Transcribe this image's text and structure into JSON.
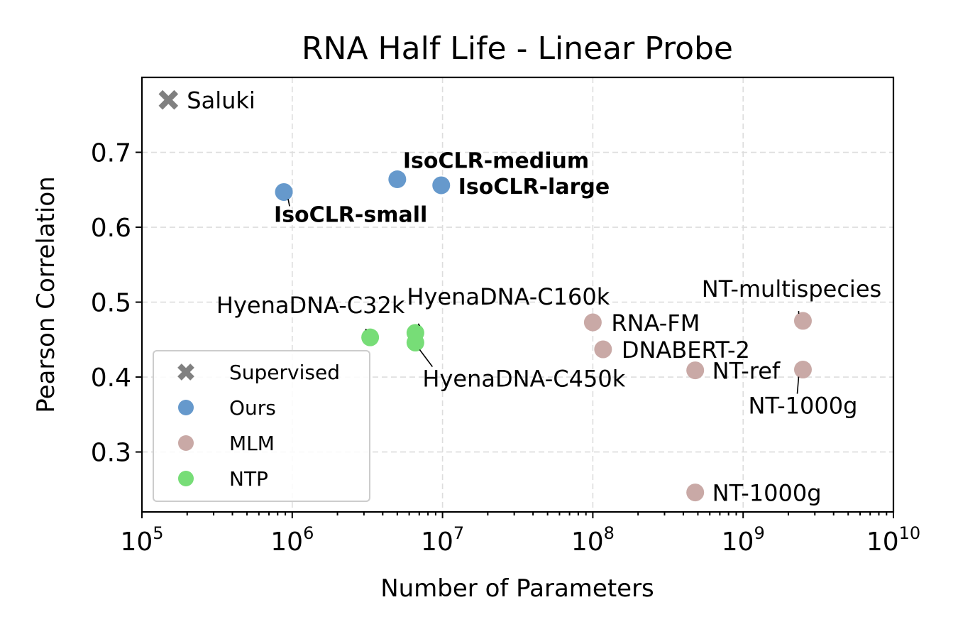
{
  "chart_data": {
    "type": "scatter",
    "title": "RNA Half Life - Linear Probe",
    "xlabel": "Number of Parameters",
    "ylabel": "Pearson Correlation",
    "x_scale": "log",
    "xlim": [
      100000,
      10000000000
    ],
    "ylim": [
      0.22,
      0.8
    ],
    "x_ticks": [
      {
        "base": "10",
        "exp": "5",
        "value": 100000
      },
      {
        "base": "10",
        "exp": "6",
        "value": 1000000
      },
      {
        "base": "10",
        "exp": "7",
        "value": 10000000
      },
      {
        "base": "10",
        "exp": "8",
        "value": 100000000
      },
      {
        "base": "10",
        "exp": "9",
        "value": 1000000000
      },
      {
        "base": "10",
        "exp": "10",
        "value": 10000000000
      }
    ],
    "y_ticks": [
      "0.3",
      "0.4",
      "0.5",
      "0.6",
      "0.7"
    ],
    "grid": true,
    "legend_position": "lower-left",
    "series": [
      {
        "name": "Supervised",
        "marker": "x",
        "color": "#808080",
        "points": [
          {
            "x": 150000,
            "y": 0.77,
            "label": "Saluki"
          }
        ]
      },
      {
        "name": "Ours",
        "marker": "circle",
        "color": "#6699cc",
        "points": [
          {
            "x": 880000,
            "y": 0.647,
            "label": "IsoCLR-small"
          },
          {
            "x": 5000000,
            "y": 0.664,
            "label": "IsoCLR-medium"
          },
          {
            "x": 9800000,
            "y": 0.656,
            "label": "IsoCLR-large"
          }
        ]
      },
      {
        "name": "MLM",
        "marker": "circle",
        "color": "#c9a9a6",
        "points": [
          {
            "x": 100000000,
            "y": 0.473,
            "label": "RNA-FM"
          },
          {
            "x": 117000000,
            "y": 0.437,
            "label": "DNABERT-2"
          },
          {
            "x": 480000000,
            "y": 0.409,
            "label": "NT-ref"
          },
          {
            "x": 480000000,
            "y": 0.246,
            "label": "NT-1000g"
          },
          {
            "x": 2500000000,
            "y": 0.475,
            "label": "NT-multispecies"
          },
          {
            "x": 2500000000,
            "y": 0.41,
            "label": "NT-1000g"
          }
        ]
      },
      {
        "name": "NTP",
        "marker": "circle",
        "color": "#77dd77",
        "points": [
          {
            "x": 3300000,
            "y": 0.453,
            "label": "HyenaDNA-C32k"
          },
          {
            "x": 6600000,
            "y": 0.459,
            "label": "HyenaDNA-C160k"
          },
          {
            "x": 6600000,
            "y": 0.446,
            "label": "HyenaDNA-C450k"
          }
        ]
      }
    ]
  }
}
